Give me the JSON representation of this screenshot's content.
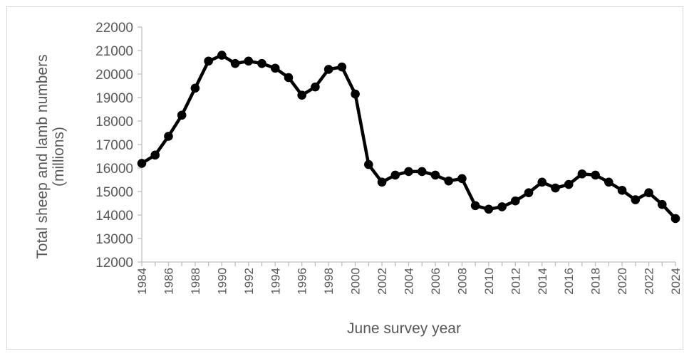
{
  "chart_data": {
    "type": "line",
    "title": "",
    "xlabel": "June survey year",
    "ylabel_line1": "Total sheep and lamb numbers",
    "ylabel_line2": "(millions)",
    "ylim": [
      12000,
      22000
    ],
    "yticks": [
      "22000",
      "21000",
      "20000",
      "19000",
      "18000",
      "17000",
      "16000",
      "15000",
      "14000",
      "13000",
      "12000"
    ],
    "xticks": [
      "1984",
      "1986",
      "1988",
      "1990",
      "1992",
      "1994",
      "1996",
      "1998",
      "2000",
      "2002",
      "2004",
      "2006",
      "2008",
      "2010",
      "2012",
      "2014",
      "2016",
      "2018",
      "2020",
      "2022",
      "2024"
    ],
    "grid": false,
    "legend": "none",
    "series": [
      {
        "color": "#000000",
        "x": [
          1984,
          1985,
          1986,
          1987,
          1988,
          1989,
          1990,
          1991,
          1992,
          1993,
          1994,
          1995,
          1996,
          1997,
          1998,
          1999,
          2000,
          2001,
          2002,
          2003,
          2004,
          2005,
          2006,
          2007,
          2008,
          2009,
          2010,
          2011,
          2012,
          2013,
          2014,
          2015,
          2016,
          2017,
          2018,
          2019,
          2020,
          2021,
          2022,
          2023,
          2024
        ],
        "values": [
          16200,
          16550,
          17350,
          18250,
          19400,
          20550,
          20800,
          20450,
          20550,
          20450,
          20250,
          19850,
          19100,
          19450,
          20200,
          20300,
          19150,
          16150,
          15400,
          15700,
          15850,
          15850,
          15700,
          15450,
          15550,
          14400,
          14250,
          14350,
          14600,
          14950,
          15400,
          15150,
          15300,
          15750,
          15700,
          15400,
          15050,
          14650,
          14950,
          14450,
          13850
        ]
      }
    ]
  }
}
